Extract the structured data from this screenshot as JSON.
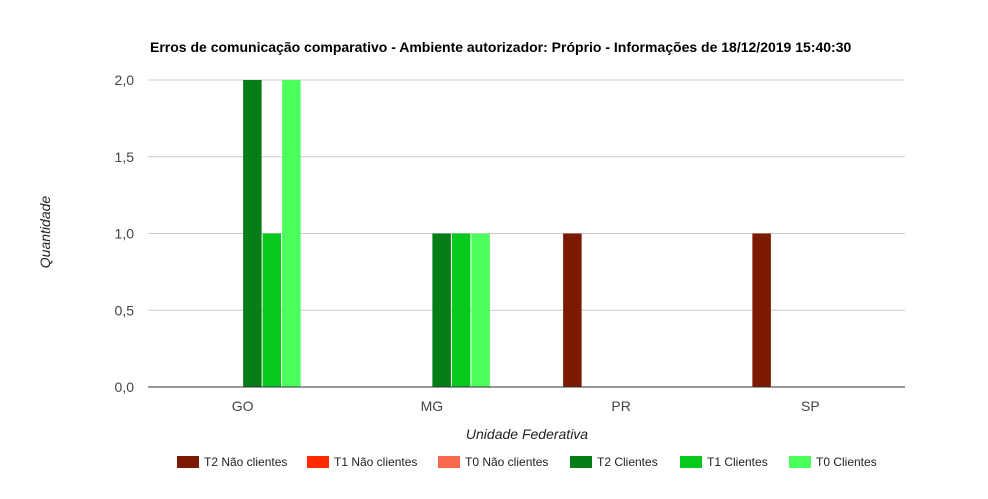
{
  "chart_data": {
    "type": "bar",
    "title": "Erros de comunicação comparativo - Ambiente autorizador: Próprio - Informações de 18/12/2019 15:40:30",
    "xlabel": "Unidade Federativa",
    "ylabel": "Quantidade",
    "categories": [
      "GO",
      "MG",
      "PR",
      "SP"
    ],
    "ylim": [
      0,
      2
    ],
    "yticks": [
      0,
      0.5,
      1,
      1.5,
      2
    ],
    "ytick_labels": [
      "0,0",
      "0,5",
      "1,0",
      "1,5",
      "2,0"
    ],
    "grid": true,
    "legend_position": "bottom",
    "series": [
      {
        "name": "T2 Não clientes",
        "color": "#7b1a00",
        "values": [
          0,
          0,
          1,
          1
        ]
      },
      {
        "name": "T1 Não clientes",
        "color": "#ff2a00",
        "values": [
          0,
          0,
          0,
          0
        ]
      },
      {
        "name": "T0 Não clientes",
        "color": "#f7694a",
        "values": [
          0,
          0,
          0,
          0
        ]
      },
      {
        "name": "T2 Clientes",
        "color": "#067d16",
        "values": [
          2,
          1,
          0,
          0
        ]
      },
      {
        "name": "T1 Clientes",
        "color": "#07c81c",
        "values": [
          1,
          1,
          0,
          0
        ]
      },
      {
        "name": "T0 Clientes",
        "color": "#4cff5c",
        "values": [
          2,
          1,
          0,
          0
        ]
      }
    ]
  }
}
